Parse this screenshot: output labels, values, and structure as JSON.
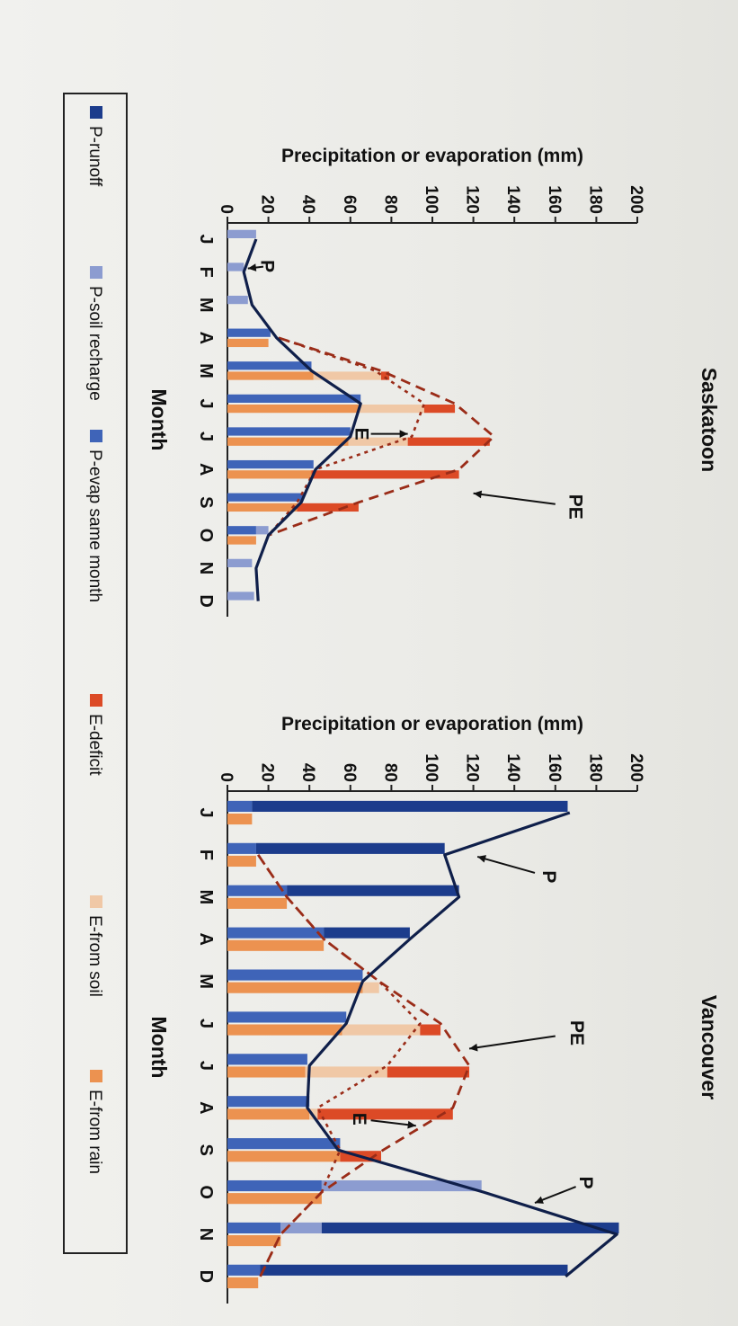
{
  "chart_data": [
    {
      "type": "bar",
      "title": "Saskatoon",
      "xlabel": "Month",
      "ylabel": "Precipitation or evaporation (mm)",
      "ylim": [
        0,
        200
      ],
      "yticks": [
        "0",
        "20",
        "40",
        "60",
        "80",
        "100",
        "120",
        "140",
        "160",
        "180",
        "200"
      ],
      "categories": [
        "J",
        "F",
        "M",
        "A",
        "M",
        "J",
        "J",
        "A",
        "S",
        "O",
        "N",
        "D"
      ],
      "precip_series": [
        {
          "name": "P-runoff",
          "values": [
            0,
            0,
            0,
            0,
            0,
            0,
            0,
            0,
            0,
            0,
            0,
            0
          ]
        },
        {
          "name": "P-soil recharge",
          "values": [
            14,
            8,
            10,
            0,
            0,
            0,
            0,
            0,
            0,
            6,
            12,
            13
          ]
        },
        {
          "name": "P-evap same month",
          "values": [
            0,
            0,
            0,
            21,
            41,
            65,
            60,
            42,
            37,
            14,
            0,
            0
          ]
        }
      ],
      "evap_series": [
        {
          "name": "E-from rain",
          "values": [
            0,
            0,
            0,
            20,
            42,
            64,
            59,
            41,
            34,
            14,
            0,
            0
          ]
        },
        {
          "name": "E-from soil",
          "values": [
            0,
            0,
            0,
            0,
            33,
            32,
            29,
            0,
            0,
            0,
            0,
            0
          ]
        },
        {
          "name": "E-deficit",
          "values": [
            0,
            0,
            0,
            0,
            4,
            15,
            40,
            72,
            30,
            0,
            0,
            0
          ]
        }
      ],
      "lines": {
        "P": [
          14,
          8,
          12,
          24,
          41,
          65,
          60,
          43,
          36,
          20,
          14,
          15
        ],
        "PE": [
          null,
          null,
          null,
          25,
          75,
          111,
          130,
          113,
          64,
          20,
          null,
          null
        ],
        "E": [
          null,
          null,
          null,
          25,
          72,
          96,
          90,
          43,
          34,
          20,
          null,
          null
        ]
      },
      "annotations": [
        "P",
        "E",
        "PE"
      ]
    },
    {
      "type": "bar",
      "title": "Vancouver",
      "xlabel": "Month",
      "ylabel": "Precipitation or evaporation (mm)",
      "ylim": [
        0,
        200
      ],
      "yticks": [
        "0",
        "20",
        "40",
        "60",
        "80",
        "100",
        "120",
        "140",
        "160",
        "180",
        "200"
      ],
      "categories": [
        "J",
        "F",
        "M",
        "A",
        "M",
        "J",
        "J",
        "A",
        "S",
        "O",
        "N",
        "D"
      ],
      "precip_series": [
        {
          "name": "P-runoff",
          "values": [
            154,
            92,
            84,
            42,
            0,
            0,
            0,
            0,
            0,
            0,
            145,
            150
          ]
        },
        {
          "name": "P-soil recharge",
          "values": [
            0,
            0,
            0,
            0,
            0,
            0,
            0,
            0,
            0,
            78,
            20,
            0
          ]
        },
        {
          "name": "P-evap same month",
          "values": [
            12,
            14,
            29,
            47,
            66,
            58,
            39,
            40,
            55,
            46,
            26,
            16
          ]
        }
      ],
      "evap_series": [
        {
          "name": "E-from rain",
          "values": [
            12,
            14,
            29,
            47,
            66,
            56,
            38,
            40,
            55,
            46,
            26,
            15
          ]
        },
        {
          "name": "E-from soil",
          "values": [
            0,
            0,
            0,
            0,
            8,
            38,
            40,
            4,
            0,
            0,
            0,
            0
          ]
        },
        {
          "name": "E-deficit",
          "values": [
            0,
            0,
            0,
            0,
            0,
            10,
            40,
            66,
            20,
            0,
            0,
            0
          ]
        }
      ],
      "lines": {
        "P": [
          167,
          106,
          113,
          89,
          66,
          58,
          40,
          39,
          54,
          125,
          190,
          165
        ],
        "PE": [
          null,
          15,
          29,
          47,
          74,
          104,
          118,
          110,
          76,
          46,
          26,
          16
        ],
        "E": [
          null,
          15,
          29,
          47,
          74,
          94,
          78,
          44,
          55,
          46,
          26,
          16
        ]
      },
      "annotations": [
        "P",
        "PE",
        "E",
        "P"
      ]
    }
  ],
  "legend": [
    {
      "name": "P-runoff",
      "color": "#1c3c8c"
    },
    {
      "name": "P-soil recharge",
      "color": "#8c9cd0"
    },
    {
      "name": "P-evap same month",
      "color": "#3f64b8"
    },
    {
      "name": "E-deficit",
      "color": "#dc4a26"
    },
    {
      "name": "E-from soil",
      "color": "#f0c8a6"
    },
    {
      "name": "E-from rain",
      "color": "#ec9250"
    }
  ],
  "colors": {
    "P-runoff": "#1c3c8c",
    "P-soil recharge": "#8c9cd0",
    "P-evap same month": "#3f64b8",
    "E-deficit": "#dc4a26",
    "E-from soil": "#f0c8a6",
    "E-from rain": "#ec9250",
    "P-line": "#0f1f4a",
    "PE-line": "#9a2c18"
  }
}
